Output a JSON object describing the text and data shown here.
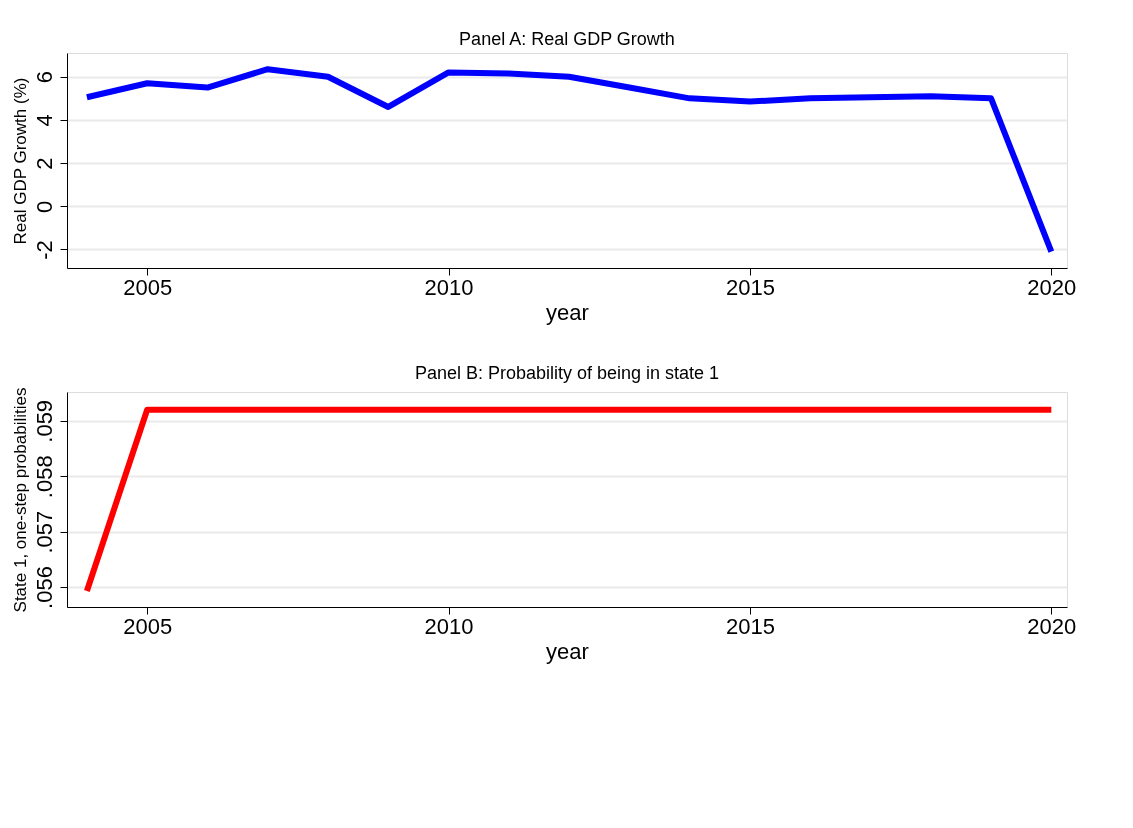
{
  "chart_data": [
    {
      "type": "line",
      "title": "Panel A: Real GDP Growth",
      "xlabel": "year",
      "ylabel": "Real GDP Growth (%)",
      "x": [
        2004,
        2005,
        2006,
        2007,
        2008,
        2009,
        2010,
        2011,
        2012,
        2013,
        2014,
        2015,
        2016,
        2017,
        2018,
        2019,
        2020
      ],
      "series": [
        {
          "color": "#0000ff",
          "values": [
            5.05,
            5.7,
            5.5,
            6.35,
            6.0,
            4.6,
            6.2,
            6.15,
            6.0,
            5.5,
            5.0,
            4.85,
            5.0,
            5.05,
            5.1,
            5.0,
            -2.1
          ]
        }
      ],
      "xlim": [
        2003.67,
        2020.26
      ],
      "xticks": [
        2005,
        2010,
        2015,
        2020
      ],
      "ylim": [
        -2.86,
        7.1
      ],
      "yticks": [
        -2,
        0,
        2,
        4,
        6
      ],
      "grid": "y",
      "line_style": "solid",
      "marker": "none"
    },
    {
      "type": "line",
      "title": "Panel B: Probability of being in state 1",
      "xlabel": "year",
      "ylabel": "State 1, one-step probabilities",
      "x": [
        2004,
        2005,
        2006,
        2007,
        2008,
        2009,
        2010,
        2011,
        2012,
        2013,
        2014,
        2015,
        2016,
        2017,
        2018,
        2019,
        2020
      ],
      "series": [
        {
          "color": "#ff0000",
          "values": [
            0.05593,
            0.0592,
            0.0592,
            0.0592,
            0.0592,
            0.0592,
            0.0592,
            0.0592,
            0.0592,
            0.0592,
            0.0592,
            0.0592,
            0.0592,
            0.0592,
            0.0592,
            0.0592,
            0.0592
          ]
        }
      ],
      "xlim": [
        2003.67,
        2020.26
      ],
      "xticks": [
        2005,
        2010,
        2015,
        2020
      ],
      "ylim": [
        0.05564,
        0.05952
      ],
      "yticks": [
        {
          "value": 0.056,
          "label": ".056"
        },
        {
          "value": 0.057,
          "label": ".057"
        },
        {
          "value": 0.058,
          "label": ".058"
        },
        {
          "value": 0.059,
          "label": ".059"
        }
      ],
      "grid": "y",
      "line_style": "solid",
      "marker": "none"
    }
  ]
}
